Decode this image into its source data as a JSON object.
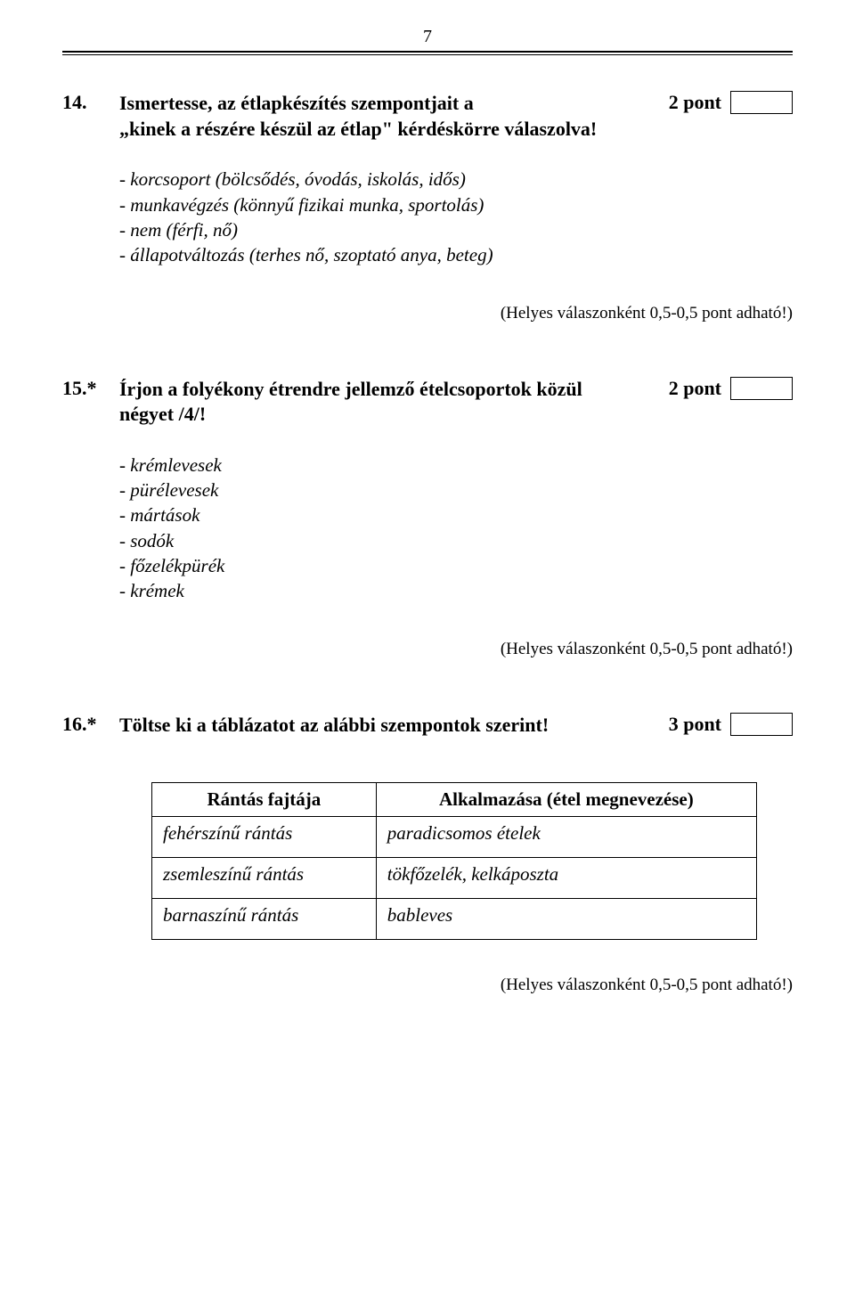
{
  "page_number": "7",
  "questions": {
    "q14": {
      "number": "14.",
      "title_line1": "Ismertesse, az étlapkészítés szempontjait a",
      "title_line2": "„kinek a részére készül az étlap\" kérdéskörre válaszolva!",
      "points": "2 pont",
      "answers": [
        "- korcsoport (bölcsődés, óvodás, iskolás, idős)",
        "- munkavégzés (könnyű fizikai munka, sportolás)",
        "- nem (férfi, nő)",
        "- állapotváltozás (terhes nő, szoptató anya, beteg)"
      ],
      "note": "(Helyes válaszonként 0,5-0,5 pont adható!)"
    },
    "q15": {
      "number": "15.*",
      "title_line1": "Írjon a folyékony étrendre jellemző ételcsoportok közül",
      "title_line2": "négyet /4/!",
      "points": "2 pont",
      "answers": [
        "- krémlevesek",
        "- pürélevesek",
        "- mártások",
        "- sodók",
        "- főzelékpürék",
        "- krémek"
      ],
      "note": "(Helyes válaszonként 0,5-0,5 pont adható!)"
    },
    "q16": {
      "number": "16.*",
      "title": "Töltse ki a táblázatot az alábbi szempontok szerint!",
      "points": "3 pont",
      "table": {
        "header_a": "Rántás fajtája",
        "header_b": "Alkalmazása (étel megnevezése)",
        "rows": [
          {
            "a": "fehérszínű rántás",
            "b": "paradicsomos ételek"
          },
          {
            "a": "zsemleszínű rántás",
            "b": "tökfőzelék, kelkáposzta"
          },
          {
            "a": "barnaszínű rántás",
            "b": "bableves"
          }
        ]
      },
      "note": "(Helyes válaszonként 0,5-0,5 pont adható!)"
    }
  }
}
